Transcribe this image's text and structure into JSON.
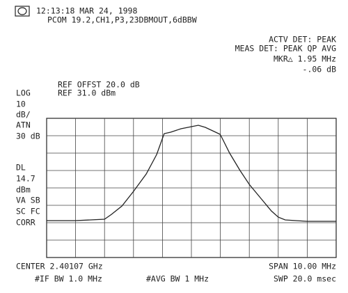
{
  "chart_data": {
    "type": "line",
    "annotations": [
      "12:13:18 MAR 24, 1998",
      "PCOM 19.2,CH1,P3,23DBMOUT,6dBBW",
      "ACTV DET: PEAK",
      "MEAS DET: PEAK QP AVG",
      "MKR△ 1.95 MHz",
      "-.06 dB",
      "REF OFFST 20.0 dB",
      "LOG",
      "REF 31.0 dBm",
      "10",
      "dB/",
      "ATN",
      "30 dB",
      "DL",
      "14.7",
      "dBm",
      "VA SB",
      "SC FC",
      "CORR",
      "CENTER 2.40107 GHz",
      "SPAN 10.00 MHz",
      "#IF BW 1.0 MHz",
      "#AVG BW 1 MHz",
      "SWP 20.0 msec"
    ],
    "x": [
      2.39607,
      2.39706,
      2.39807,
      2.39831,
      2.39867,
      2.39907,
      2.39951,
      2.39987,
      2.40006,
      2.40013,
      2.40035,
      2.40071,
      2.40107,
      2.40131,
      2.40155,
      2.40191,
      2.40206,
      2.40215,
      2.40239,
      2.40275,
      2.40307,
      2.40347,
      2.40383,
      2.40407,
      2.40431,
      2.40506,
      2.40607
    ],
    "series": [
      {
        "color": "#222222",
        "values": [
          -27.8,
          -27.8,
          -27.0,
          -24.2,
          -19.4,
          -11.0,
          -1.0,
          10.2,
          19.0,
          22.2,
          23.0,
          25.0,
          26.2,
          27.0,
          25.8,
          23.0,
          21.8,
          19.0,
          11.0,
          1.0,
          -7.0,
          -15.0,
          -22.2,
          -25.8,
          -27.4,
          -28.2,
          -28.2
        ]
      }
    ],
    "xlim": [
      2.39607,
      2.40607
    ],
    "ylim": [
      -49,
      31
    ],
    "xdivisions": 10,
    "ydivisions": 8,
    "grid": true
  }
}
